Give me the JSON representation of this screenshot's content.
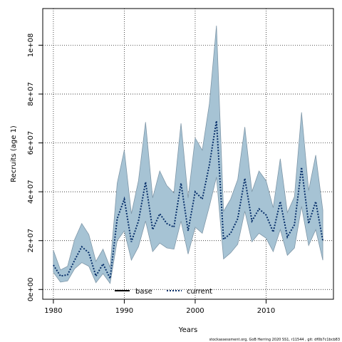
{
  "chart_data": {
    "type": "area",
    "xlabel": "Years",
    "ylabel": "Recruits (age 1)",
    "xlim": [
      1978.5,
      2019.5
    ],
    "ylim": [
      -4000000,
      115000000
    ],
    "x_ticks": [
      1980,
      1990,
      2000,
      2010
    ],
    "x_tick_labels": [
      "1980",
      "1990",
      "2000",
      "2010"
    ],
    "y_ticks": [
      0,
      20000000,
      40000000,
      60000000,
      80000000,
      100000000
    ],
    "y_tick_labels": [
      "0e+00",
      "2e+07",
      "4e+07",
      "6e+07",
      "8e+07",
      "1e+08"
    ],
    "grid": true,
    "legend_position": "bottom",
    "legend": [
      {
        "label": "base",
        "style": "solid",
        "color": "#000000"
      },
      {
        "label": "current",
        "style": "dotted",
        "color": "#08306b"
      }
    ],
    "x": [
      1980,
      1981,
      1982,
      1983,
      1984,
      1985,
      1986,
      1987,
      1988,
      1989,
      1990,
      1991,
      1992,
      1993,
      1994,
      1995,
      1996,
      1997,
      1998,
      1999,
      2000,
      2001,
      2002,
      2003,
      2004,
      2005,
      2006,
      2007,
      2008,
      2009,
      2010,
      2011,
      2012,
      2013,
      2014,
      2015,
      2016,
      2017,
      2018
    ],
    "series": [
      {
        "name": "current",
        "values": [
          10000000,
          5500000,
          6000000,
          12000000,
          17500000,
          15000000,
          5500000,
          10500000,
          4500000,
          29000000,
          37000000,
          19500000,
          28000000,
          44000000,
          24500000,
          31000000,
          27000000,
          25500000,
          43500000,
          24000000,
          40000000,
          37000000,
          51000000,
          69000000,
          20500000,
          23000000,
          29000000,
          45500000,
          28000000,
          33000000,
          30500000,
          23500000,
          36000000,
          21500000,
          26500000,
          50000000,
          27000000,
          36000000,
          20000000
        ],
        "lower": [
          7000000,
          3000000,
          3500000,
          8500000,
          11000000,
          9500000,
          2800000,
          6500000,
          2500000,
          20000000,
          24000000,
          12000000,
          17500000,
          28000000,
          15500000,
          19000000,
          17000000,
          16500000,
          28000000,
          14500000,
          25500000,
          23000000,
          34000000,
          46000000,
          12500000,
          15000000,
          18500000,
          32000000,
          19500000,
          23000000,
          21000000,
          15500000,
          24500000,
          14000000,
          17000000,
          34000000,
          18000000,
          24500000,
          12000000
        ],
        "upper": [
          16000000,
          8000000,
          9500000,
          20500000,
          27000000,
          22500000,
          11500000,
          16500000,
          9000000,
          43500000,
          57000000,
          31000000,
          44500000,
          68500000,
          37500000,
          48500000,
          42500000,
          39500000,
          68000000,
          37500000,
          62000000,
          57000000,
          76000000,
          108000000,
          32000000,
          37000000,
          45000000,
          66500000,
          40000000,
          48500000,
          44500000,
          33500000,
          53500000,
          31500000,
          38000000,
          72500000,
          40500000,
          55000000,
          32500000
        ]
      }
    ],
    "band_color": "#a6c3d4",
    "band_edge_color": "#7f97a8",
    "line_color": "#08306b"
  },
  "footnote": "stockassessment.org, GoB Herring 2020 SS1, r11544 , git: df0b7c1bcb83"
}
